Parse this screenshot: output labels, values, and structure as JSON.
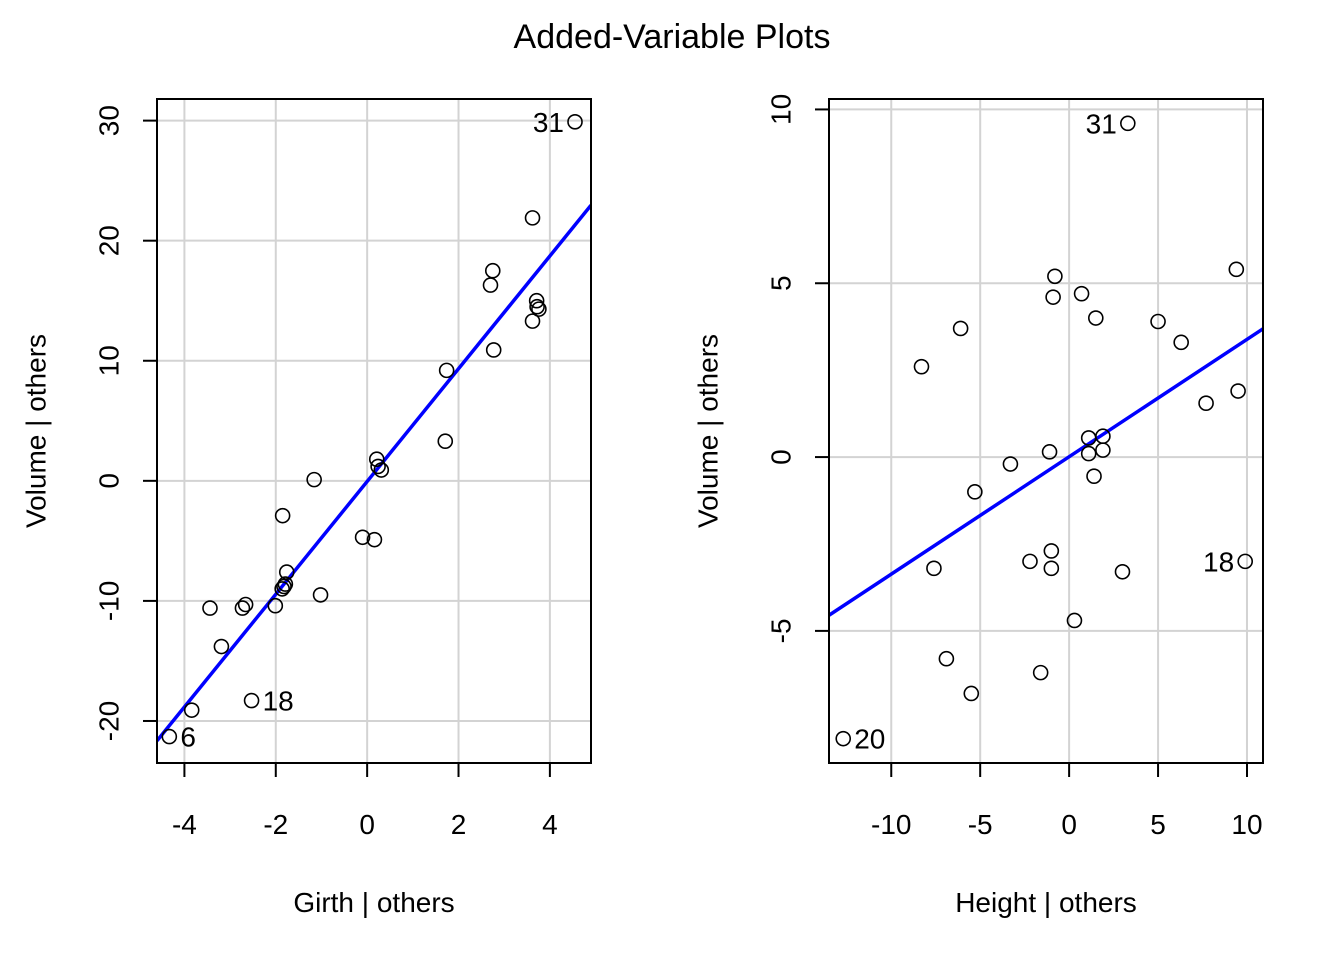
{
  "figure": {
    "title": "Added-Variable Plots"
  },
  "colors": {
    "grid": "#d3d3d3",
    "fit_line": "#0000ff",
    "points": "#000000",
    "frame": "#000000"
  },
  "chart_data": [
    {
      "type": "scatter",
      "xlabel": "Girth | others",
      "ylabel": "Volume  | others",
      "xlim": [
        -4.6,
        4.9
      ],
      "ylim": [
        -23.5,
        31.8
      ],
      "x_ticks": [
        -4,
        -2,
        0,
        2,
        4
      ],
      "x_tick_labels": [
        "-4",
        "-2",
        "0",
        "2",
        "4"
      ],
      "y_ticks": [
        -20,
        -10,
        0,
        10,
        20,
        30
      ],
      "y_tick_labels": [
        "-20",
        "-10",
        "0",
        "10",
        "20",
        "30"
      ],
      "grid": true,
      "fit_line": {
        "x": [
          -4.6,
          4.9
        ],
        "y": [
          -21.65,
          22.95
        ]
      },
      "points": [
        {
          "x": -4.33,
          "y": -21.3
        },
        {
          "x": -3.84,
          "y": -19.1
        },
        {
          "x": -3.44,
          "y": -10.6
        },
        {
          "x": -3.19,
          "y": -13.8
        },
        {
          "x": -2.73,
          "y": -10.6
        },
        {
          "x": -2.66,
          "y": -10.3
        },
        {
          "x": -2.53,
          "y": -18.3
        },
        {
          "x": -2.01,
          "y": -10.4
        },
        {
          "x": -1.85,
          "y": -2.9
        },
        {
          "x": -1.86,
          "y": -9.0
        },
        {
          "x": -1.82,
          "y": -8.8
        },
        {
          "x": -1.79,
          "y": -8.6
        },
        {
          "x": -1.76,
          "y": -7.6
        },
        {
          "x": -1.16,
          "y": 0.1
        },
        {
          "x": -1.02,
          "y": -9.5
        },
        {
          "x": -0.1,
          "y": -4.7
        },
        {
          "x": 0.16,
          "y": -4.9
        },
        {
          "x": 0.21,
          "y": 1.8
        },
        {
          "x": 0.24,
          "y": 1.2
        },
        {
          "x": 0.31,
          "y": 0.9
        },
        {
          "x": 1.71,
          "y": 3.3
        },
        {
          "x": 1.74,
          "y": 9.2
        },
        {
          "x": 2.7,
          "y": 16.3
        },
        {
          "x": 2.75,
          "y": 17.5
        },
        {
          "x": 2.77,
          "y": 10.9
        },
        {
          "x": 3.62,
          "y": 21.9
        },
        {
          "x": 3.62,
          "y": 13.3
        },
        {
          "x": 3.71,
          "y": 15.0
        },
        {
          "x": 3.72,
          "y": 14.5
        },
        {
          "x": 3.76,
          "y": 14.3
        },
        {
          "x": 4.55,
          "y": 29.9
        }
      ],
      "annotations": [
        {
          "text": "31",
          "x": 4.55,
          "y": 29.9,
          "side": "left"
        },
        {
          "text": "18",
          "x": -2.53,
          "y": -18.3,
          "side": "right"
        },
        {
          "text": "6",
          "x": -4.33,
          "y": -21.3,
          "side": "right"
        }
      ]
    },
    {
      "type": "scatter",
      "xlabel": "Height | others",
      "ylabel": "Volume  | others",
      "xlim": [
        -13.5,
        10.9
      ],
      "ylim": [
        -8.8,
        10.3
      ],
      "x_ticks": [
        -10,
        -5,
        0,
        5,
        10
      ],
      "x_tick_labels": [
        "-10",
        "-5",
        "0",
        "5",
        "10"
      ],
      "y_ticks": [
        -5,
        0,
        5,
        10
      ],
      "y_tick_labels": [
        "-5",
        "0",
        "5",
        "10"
      ],
      "grid": true,
      "fit_line": {
        "x": [
          -13.5,
          10.9
        ],
        "y": [
          -4.55,
          3.69
        ]
      },
      "points": [
        {
          "x": -12.7,
          "y": -8.1
        },
        {
          "x": -8.3,
          "y": 2.6
        },
        {
          "x": -7.6,
          "y": -3.2
        },
        {
          "x": -6.9,
          "y": -5.8
        },
        {
          "x": -6.1,
          "y": 3.7
        },
        {
          "x": -5.5,
          "y": -6.8
        },
        {
          "x": -5.3,
          "y": -1.0
        },
        {
          "x": -3.3,
          "y": -0.2
        },
        {
          "x": -2.2,
          "y": -3.0
        },
        {
          "x": -1.6,
          "y": -6.2
        },
        {
          "x": -1.1,
          "y": 0.15
        },
        {
          "x": -1.0,
          "y": -2.7
        },
        {
          "x": -1.0,
          "y": -3.2
        },
        {
          "x": -0.9,
          "y": 4.6
        },
        {
          "x": -0.8,
          "y": 5.2
        },
        {
          "x": 0.3,
          "y": -4.7
        },
        {
          "x": 0.7,
          "y": 4.7
        },
        {
          "x": 1.1,
          "y": 0.55
        },
        {
          "x": 1.1,
          "y": 0.1
        },
        {
          "x": 1.4,
          "y": -0.55
        },
        {
          "x": 1.5,
          "y": 4.0
        },
        {
          "x": 1.9,
          "y": 0.6
        },
        {
          "x": 1.9,
          "y": 0.2
        },
        {
          "x": 3.0,
          "y": -3.3
        },
        {
          "x": 3.3,
          "y": 9.6
        },
        {
          "x": 5.0,
          "y": 3.9
        },
        {
          "x": 6.3,
          "y": 3.3
        },
        {
          "x": 7.7,
          "y": 1.55
        },
        {
          "x": 9.4,
          "y": 5.4
        },
        {
          "x": 9.5,
          "y": 1.9
        },
        {
          "x": 9.9,
          "y": -3.0
        }
      ],
      "annotations": [
        {
          "text": "31",
          "x": 3.3,
          "y": 9.6,
          "side": "left"
        },
        {
          "text": "18",
          "x": 9.9,
          "y": -3.0,
          "side": "left"
        },
        {
          "text": "20",
          "x": -12.7,
          "y": -8.1,
          "side": "right"
        }
      ]
    }
  ]
}
